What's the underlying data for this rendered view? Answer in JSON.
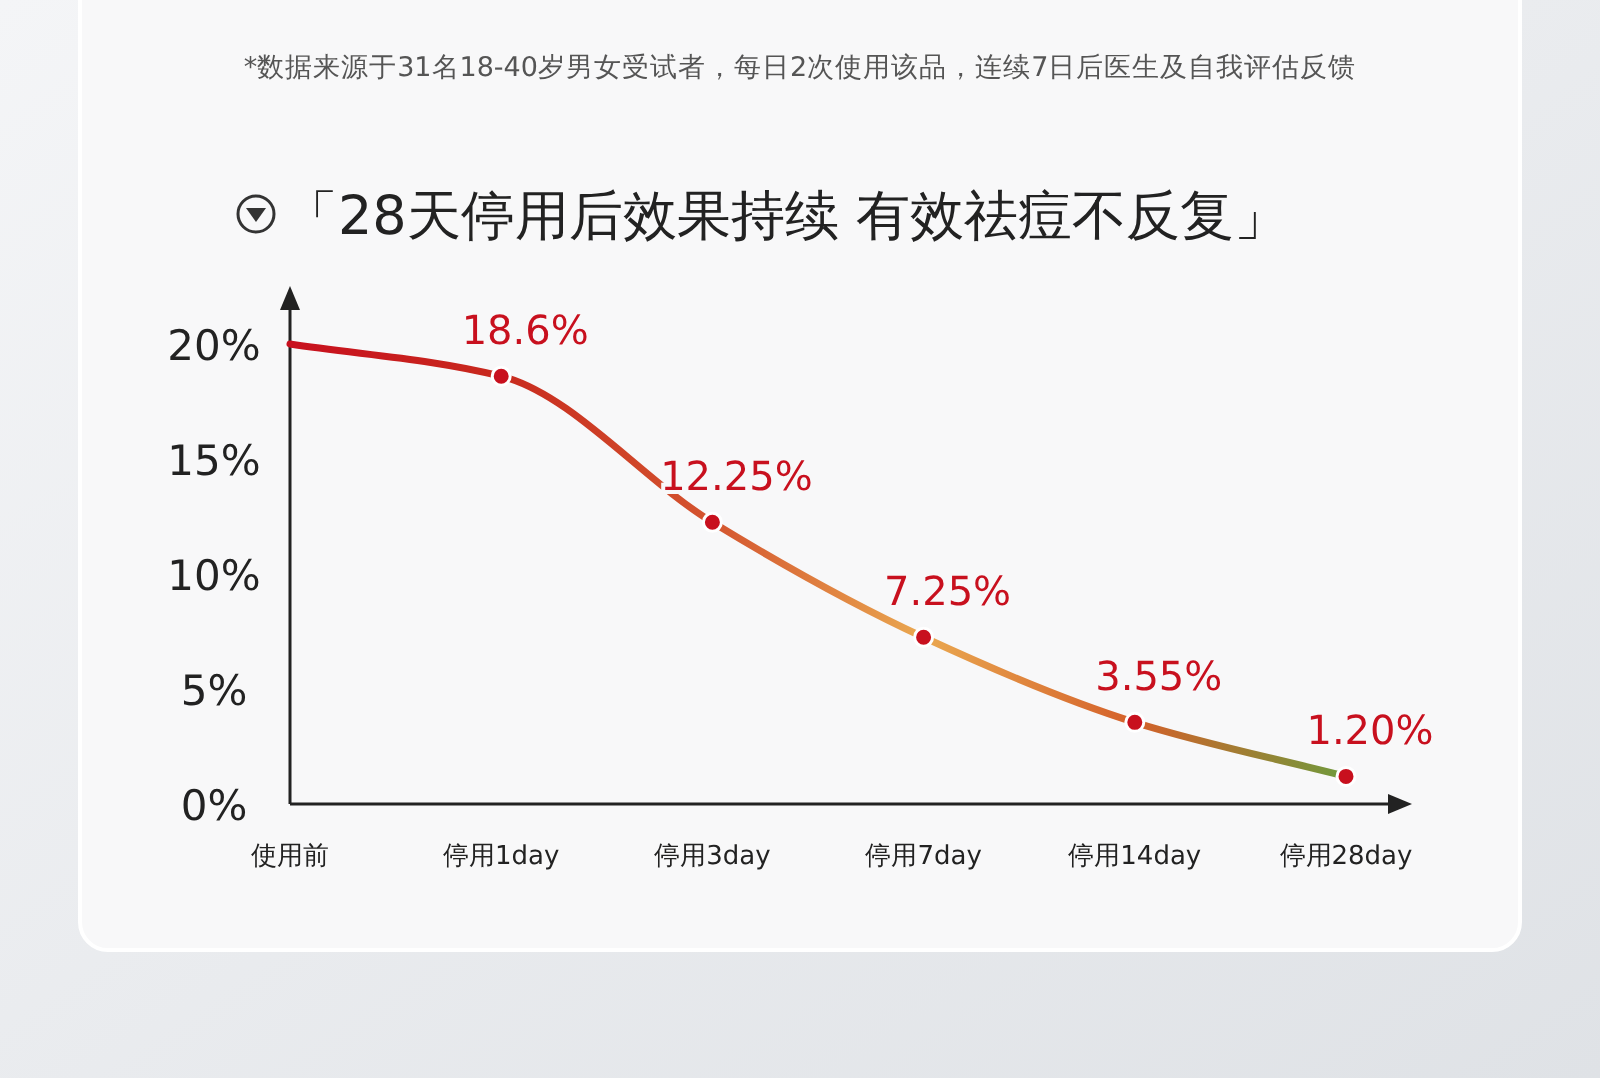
{
  "chart_data": {
    "type": "line",
    "title": "「28天停用后效果持续 有效祛痘不反复」",
    "annotations": [
      "*数据来源于31名18-40岁男女受试者，每日2次使用该品，连续7日后医生及自我评估反馈"
    ],
    "categories": [
      "使用前",
      "停用1day",
      "停用3day",
      "停用7day",
      "停用14day",
      "停用28day"
    ],
    "series": [
      {
        "color": "#c8101e",
        "colors": [
          "#c8101e",
          "#c82a1e",
          "#d4552f",
          "#eaa850",
          "#d4602a",
          "#6f9a3c"
        ],
        "values": [
          20,
          18.6,
          12.25,
          7.25,
          3.55,
          1.2
        ],
        "value_labels": [
          null,
          "18.6%",
          "12.25%",
          "7.25%",
          "3.55%",
          "1.20%"
        ]
      }
    ],
    "ylim": [
      0,
      22
    ],
    "yticks": [
      {
        "value": 0,
        "label": "0%"
      },
      {
        "value": 5,
        "label": "5%"
      },
      {
        "value": 10,
        "label": "10%"
      },
      {
        "value": 15,
        "label": "15%"
      },
      {
        "value": 20,
        "label": "20%"
      }
    ],
    "grid": false,
    "marker": "circle",
    "line_style": "solid"
  }
}
